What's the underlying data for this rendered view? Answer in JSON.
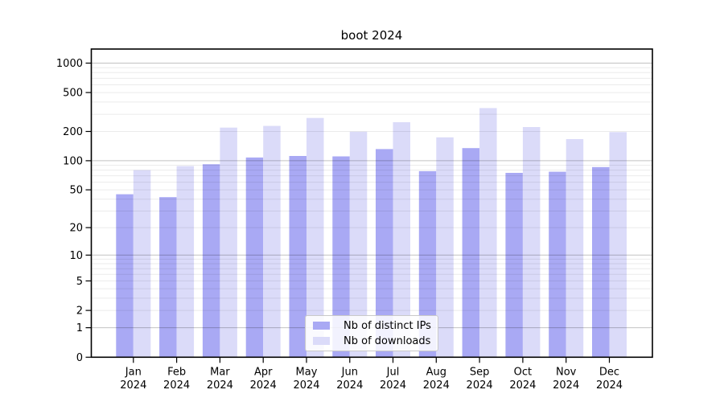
{
  "chart_data": {
    "type": "bar",
    "title": "boot 2024",
    "categories": [
      "Jan",
      "Feb",
      "Mar",
      "Apr",
      "May",
      "Jun",
      "Jul",
      "Aug",
      "Sep",
      "Oct",
      "Nov",
      "Dec"
    ],
    "x_tick_second_line": "2024",
    "series": [
      {
        "name": "Nb of distinct IPs",
        "color": "#a9a9f4",
        "values": [
          45,
          42,
          92,
          108,
          112,
          111,
          132,
          78,
          135,
          75,
          77,
          86
        ]
      },
      {
        "name": "Nb of downloads",
        "color": "#dbdbf9",
        "values": [
          80,
          88,
          219,
          228,
          275,
          199,
          249,
          174,
          347,
          222,
          167,
          197
        ]
      }
    ],
    "yscale": "log1p",
    "ylim": [
      0,
      1392
    ],
    "y_ticks": [
      1000,
      500,
      200,
      100,
      50,
      20,
      10,
      5,
      2,
      1,
      0
    ],
    "grid": {
      "which": "both",
      "major_color": "rgba(0,0,0,0.24)",
      "minor_color": "rgba(0,0,0,0.08)"
    },
    "legend": {
      "position": "lower center"
    },
    "background": "#ffffff",
    "text_color": "#000000",
    "axis_color": "#000000"
  }
}
